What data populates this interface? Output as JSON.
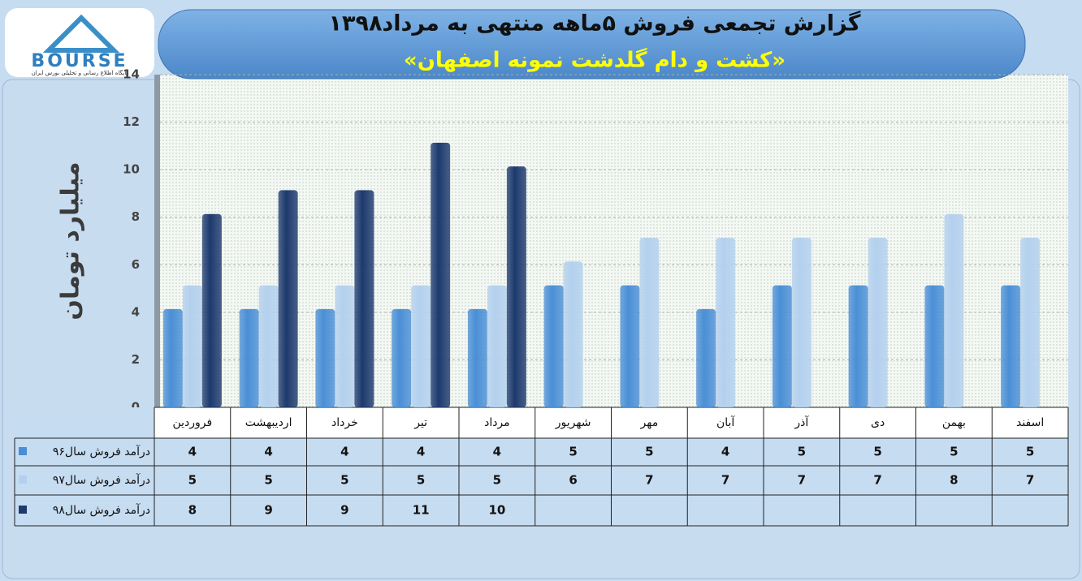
{
  "logo_text": "BOURSE",
  "logo_subtitle": "پایگاه اطلاع رسانی و تحلیلی بورس ایران",
  "chart_data": {
    "type": "bar",
    "title": "گزارش تجمعی فروش ۵ماهه منتهی به مرداد۱۳۹۸",
    "subtitle": "«کشت و دام گلدشت نمونه اصفهان»",
    "y_label": "میلیارد تومان",
    "categories": [
      "فروردین",
      "اردیبهشت",
      "خرداد",
      "تیر",
      "مرداد",
      "شهریور",
      "مهر",
      "آبان",
      "آذر",
      "دی",
      "بهمن",
      "اسفند"
    ],
    "series": [
      {
        "name": "درآمد فروش  سال۹۶",
        "color": "#4a8fd6",
        "values": [
          4,
          4,
          4,
          4,
          4,
          5,
          5,
          4,
          5,
          5,
          5,
          5
        ]
      },
      {
        "name": "درآمد  فروش سال۹۷",
        "color": "#b3d0ee",
        "values": [
          5,
          5,
          5,
          5,
          5,
          6,
          7,
          7,
          7,
          7,
          8,
          7
        ]
      },
      {
        "name": "درآمد فروش  سال۹۸",
        "color": "#1d3a6e",
        "values": [
          8,
          9,
          9,
          11,
          10,
          null,
          null,
          null,
          null,
          null,
          null,
          null
        ]
      }
    ],
    "ylim": [
      0,
      14
    ],
    "yticks": [
      0,
      2,
      4,
      6,
      8,
      10,
      12,
      14
    ],
    "grid": true
  }
}
